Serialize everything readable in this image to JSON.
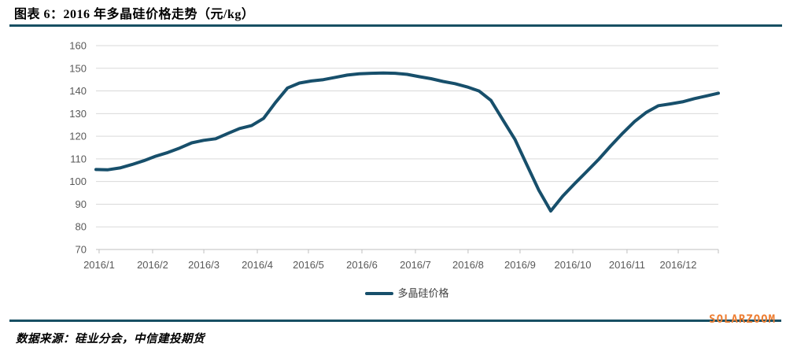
{
  "header": {
    "title": "图表 6：2016 年多晶硅价格走势（元/kg）"
  },
  "footer": {
    "source_note": "数据来源：硅业分会，中信建投期货",
    "watermark": "SOLARZOOM"
  },
  "colors": {
    "line": "#174F6B",
    "rule": "#174F63",
    "grid": "#D9D9D9",
    "axis_line": "#BFBFBF",
    "axis_text": "#595959",
    "legend_text": "#404040",
    "watermark": "#ED7D31"
  },
  "chart_data": {
    "type": "line",
    "title": "2016 年多晶硅价格走势",
    "unit": "元/kg",
    "xlabel": "",
    "ylabel": "",
    "ylim": [
      70,
      160
    ],
    "y_ticks": [
      70,
      80,
      90,
      100,
      110,
      120,
      130,
      140,
      150,
      160
    ],
    "x_tick_labels": [
      "2016/1",
      "2016/2",
      "2016/3",
      "2016/4",
      "2016/5",
      "2016/6",
      "2016/7",
      "2016/8",
      "2016/9",
      "2016/10",
      "2016/11",
      "2016/12"
    ],
    "x_tick_weeks": [
      0.26,
      4.73,
      9.01,
      13.48,
      17.75,
      22.22,
      26.69,
      31.09,
      35.43,
      39.84,
      44.37,
      48.65
    ],
    "x_resolution": "weekly",
    "grid": "horizontal",
    "legend_position": "bottom",
    "series": [
      {
        "name": "多晶硅价格",
        "values": [
          105.3,
          105.2,
          106.0,
          107.5,
          109.2,
          111.2,
          112.8,
          114.8,
          117.1,
          118.2,
          118.9,
          121.2,
          123.4,
          124.7,
          127.9,
          134.9,
          141.3,
          143.5,
          144.4,
          145.0,
          146.0,
          147.0,
          147.6,
          147.8,
          147.9,
          147.8,
          147.3,
          146.3,
          145.4,
          144.2,
          143.2,
          141.8,
          140.0,
          135.8,
          127.2,
          118.7,
          107.4,
          96.2,
          87.0,
          93.6,
          99.1,
          104.4,
          109.8,
          115.7,
          121.3,
          126.5,
          130.6,
          133.5,
          134.3,
          135.2,
          136.6,
          137.8,
          139.0
        ]
      }
    ]
  }
}
